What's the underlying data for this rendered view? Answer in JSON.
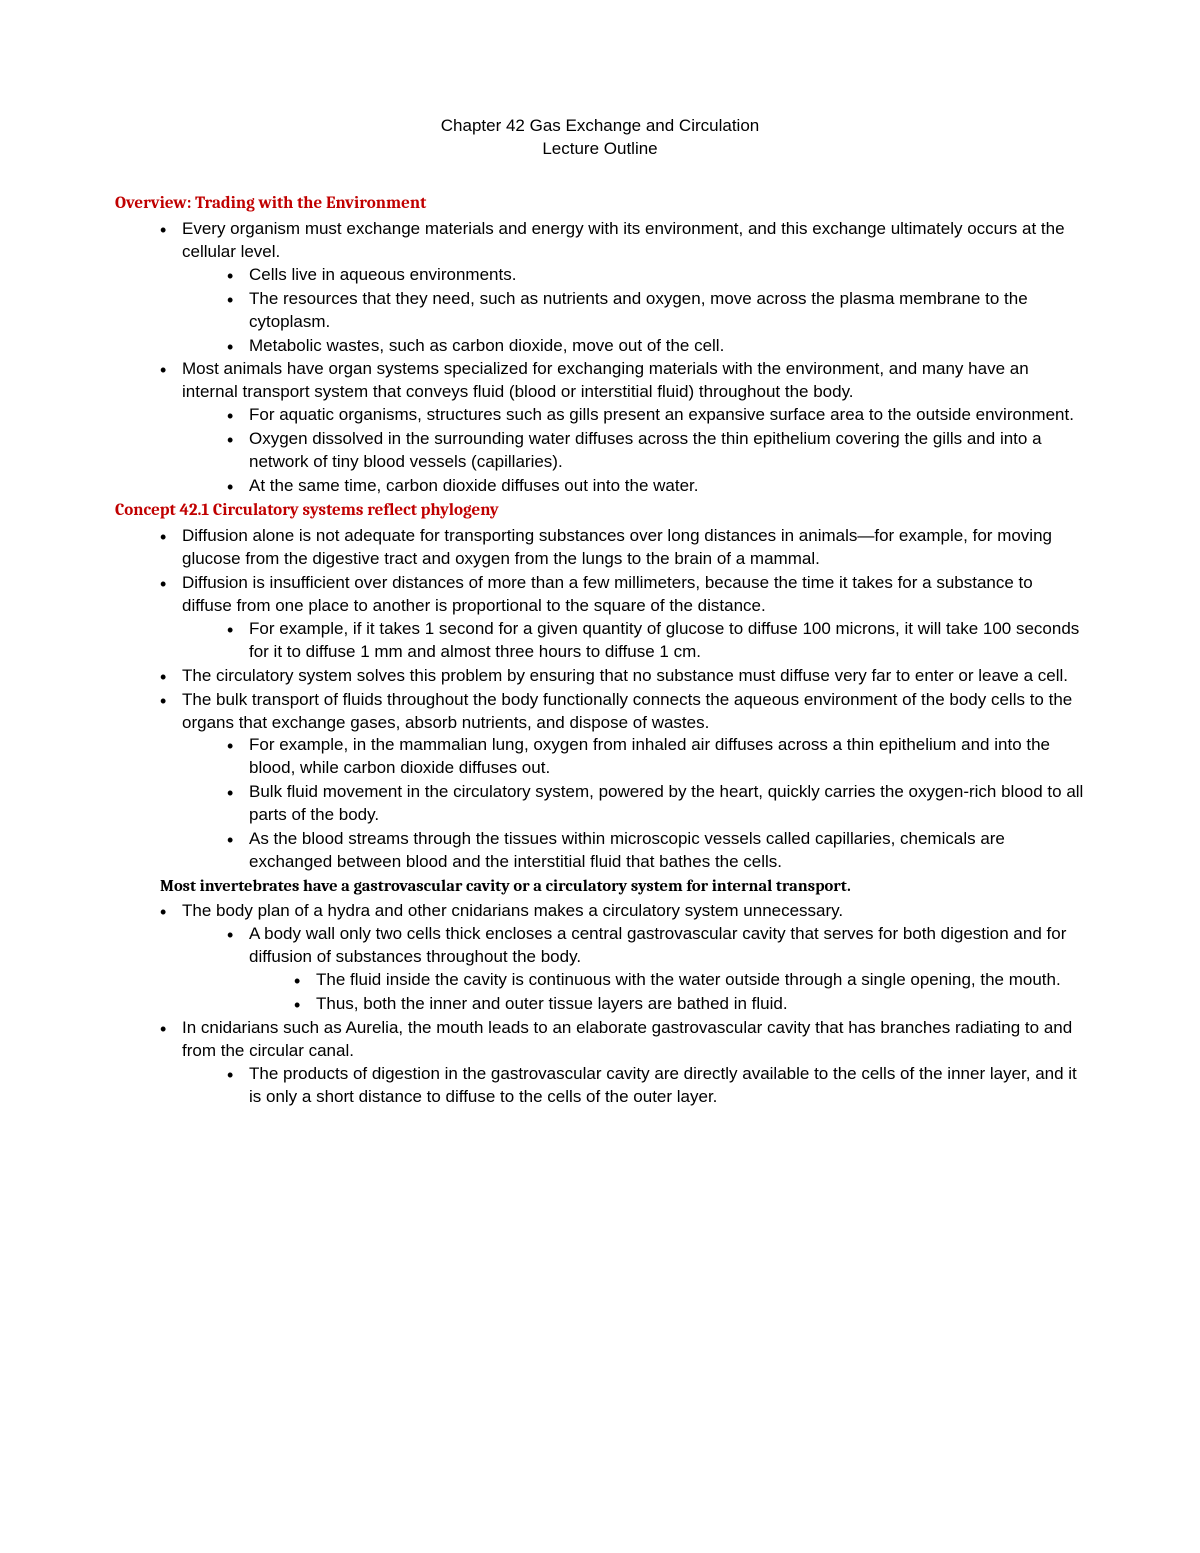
{
  "title1": "Chapter 42 Gas Exchange and Circulation",
  "title2": "Lecture Outline",
  "overview": {
    "heading": "Overview: Trading with the Environment",
    "b1": "Every organism must exchange materials and energy with its environment, and this exchange ultimately occurs at the cellular level.",
    "b1a": "Cells live in aqueous environments.",
    "b1b": "The resources that they need, such as nutrients and oxygen, move across the plasma membrane to the cytoplasm.",
    "b1c": "Metabolic wastes, such as carbon dioxide, move out of the cell.",
    "b2": "Most animals have organ systems specialized for exchanging materials with the environment, and many have an internal transport system that conveys fluid (blood or interstitial fluid) throughout the body.",
    "b2a": "For aquatic organisms, structures such as gills present an expansive surface area to the outside environment.",
    "b2b": "Oxygen dissolved in the surrounding water diffuses across the thin epithelium covering the gills and into a network of tiny blood vessels (capillaries).",
    "b2c": "At the same time, carbon dioxide diffuses out into the water."
  },
  "concept421": {
    "heading": "Concept 42.1 Circulatory systems reflect phylogeny",
    "b1": "Diffusion alone is not adequate for transporting substances over long distances in animals—for example, for moving glucose from the digestive tract and oxygen from the lungs to the brain of a mammal.",
    "b2": "Diffusion is insufficient over distances of more than a few millimeters, because the time it takes for a substance to diffuse from one place to another is proportional to the square of the distance.",
    "b2a": "For example, if it takes 1 second for a given quantity of glucose to diffuse 100 microns, it will take 100 seconds for it to diffuse 1 mm and almost three hours to diffuse 1 cm.",
    "b3": "The circulatory system solves this problem by ensuring that no substance must diffuse very far to enter or leave a cell.",
    "b4": "The bulk transport of fluids throughout the body functionally connects the aqueous environment of the body cells to the organs that exchange gases, absorb nutrients, and dispose of wastes.",
    "b4a": "For example, in the mammalian lung, oxygen from inhaled air diffuses across a thin epithelium and into the blood, while carbon dioxide diffuses out.",
    "b4b": "Bulk fluid movement in the circulatory system, powered by the heart, quickly carries the oxygen-rich blood to all parts of the body.",
    "b4c": "As the blood streams through the tissues within microscopic vessels called capillaries, chemicals are exchanged between blood and the interstitial fluid that bathes the cells.",
    "subheading": "Most invertebrates have a gastrovascular cavity or a circulatory system for internal transport.",
    "b5": "The body plan of a hydra and other cnidarians makes a circulatory system unnecessary.",
    "b5a": "A body wall only two cells thick encloses a central gastrovascular cavity that serves for both digestion and for diffusion of substances throughout the body.",
    "b5a1": "The fluid inside the cavity is continuous with the water outside through a single opening, the mouth.",
    "b5a2": "Thus, both the inner and outer tissue layers are bathed in fluid.",
    "b6": "In cnidarians such as Aurelia, the mouth leads to an elaborate gastrovascular cavity that has branches radiating to and from the circular canal.",
    "b6a": "The products of digestion in the gastrovascular cavity are directly available to the cells of the inner layer, and it is only a short distance to diffuse to the cells of the outer layer."
  }
}
